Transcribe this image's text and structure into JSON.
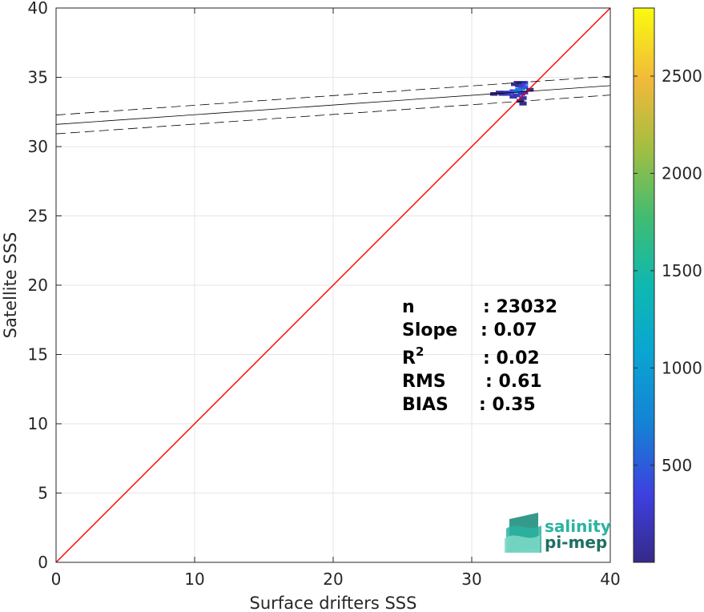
{
  "chart_data": {
    "type": "heatmap",
    "xlabel": "Surface drifters SSS",
    "ylabel": "Satellite SSS",
    "xlim": [
      0,
      40
    ],
    "ylim": [
      0,
      40
    ],
    "xticks": [
      0,
      10,
      20,
      30,
      40
    ],
    "yticks": [
      0,
      5,
      10,
      15,
      20,
      25,
      30,
      35,
      40
    ],
    "grid": true,
    "colorbar": {
      "range": [
        1,
        2850
      ],
      "ticks": [
        500,
        1000,
        1500,
        2000,
        2500
      ],
      "colormap": "parula"
    },
    "reference_line": {
      "slope": 1,
      "intercept": 0,
      "color": "#ff0000"
    },
    "regression_line": {
      "slope": 0.07,
      "intercept": 31.6,
      "color": "#000000"
    },
    "confidence_band": {
      "offset": 0.68,
      "style": "dashed",
      "color": "#000000"
    },
    "density_cells": [
      {
        "x": 32.2,
        "y": 33.8,
        "count": 120
      },
      {
        "x": 32.4,
        "y": 33.9,
        "count": 150
      },
      {
        "x": 32.6,
        "y": 33.8,
        "count": 220
      },
      {
        "x": 32.8,
        "y": 33.9,
        "count": 300
      },
      {
        "x": 33.0,
        "y": 34.0,
        "count": 420
      },
      {
        "x": 33.2,
        "y": 34.0,
        "count": 520
      },
      {
        "x": 33.4,
        "y": 34.1,
        "count": 650
      },
      {
        "x": 33.6,
        "y": 34.2,
        "count": 700
      },
      {
        "x": 33.8,
        "y": 34.3,
        "count": 480
      },
      {
        "x": 33.6,
        "y": 34.5,
        "count": 380
      },
      {
        "x": 33.8,
        "y": 34.6,
        "count": 300
      },
      {
        "x": 33.4,
        "y": 34.4,
        "count": 260
      },
      {
        "x": 33.2,
        "y": 33.7,
        "count": 240
      },
      {
        "x": 33.6,
        "y": 33.8,
        "count": 280
      },
      {
        "x": 33.8,
        "y": 33.9,
        "count": 200
      },
      {
        "x": 33.0,
        "y": 33.6,
        "count": 160
      },
      {
        "x": 33.7,
        "y": 33.5,
        "count": 120
      },
      {
        "x": 33.5,
        "y": 33.3,
        "count": 60
      },
      {
        "x": 32.0,
        "y": 33.9,
        "count": 40
      },
      {
        "x": 31.6,
        "y": 33.8,
        "count": 25
      },
      {
        "x": 34.2,
        "y": 34.1,
        "count": 20
      },
      {
        "x": 33.3,
        "y": 34.6,
        "count": 40
      },
      {
        "x": 33.1,
        "y": 34.5,
        "count": 30
      },
      {
        "x": 33.7,
        "y": 33.1,
        "count": 15
      }
    ]
  },
  "stats": [
    {
      "label": "n",
      "value": ": 23032"
    },
    {
      "label": "Slope",
      "value": ": 0.07"
    },
    {
      "label": "R",
      "sup": "2",
      "value": ": 0.02"
    },
    {
      "label": "RMS",
      "value": ": 0.61"
    },
    {
      "label": "BIAS",
      "value": ": 0.35"
    }
  ],
  "logo": {
    "line1": "salinity",
    "line2": "pi-mep",
    "color1": "#2bb3a0",
    "color2": "#1f6f63"
  }
}
